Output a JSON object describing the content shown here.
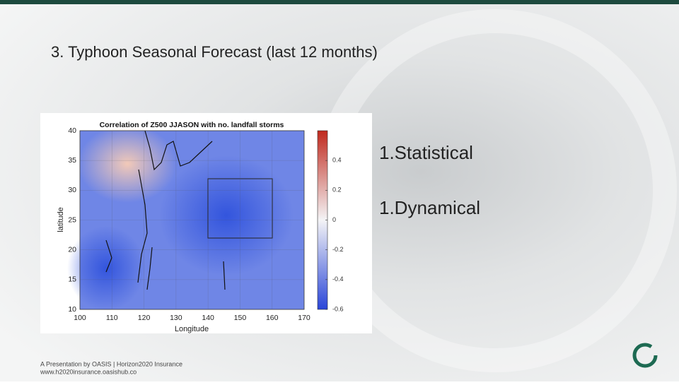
{
  "title": "3. Typhoon Seasonal Forecast (last 12 months)",
  "figure": {
    "title": "Correlation of Z500 JJASON with no. landfall storms",
    "xlabel": "Longitude",
    "ylabel": "latitude",
    "xlim": [
      100,
      170
    ],
    "xticks": [
      100,
      110,
      120,
      130,
      140,
      150,
      160,
      170
    ],
    "ylim": [
      10,
      40
    ],
    "yticks": [
      10,
      15,
      20,
      25,
      30,
      35,
      40
    ],
    "colorbar": {
      "lim": [
        -0.6,
        0.6
      ],
      "ticks": [
        -0.6,
        -0.4,
        -0.2,
        0,
        0.2,
        0.4
      ]
    }
  },
  "bullets": [
    "1.Statistical",
    "1.Dynamical"
  ],
  "footer": {
    "line1": "A Presentation by OASIS | Horizon2020 Insurance",
    "line2": "www.h2020insurance.oasishub.co"
  }
}
